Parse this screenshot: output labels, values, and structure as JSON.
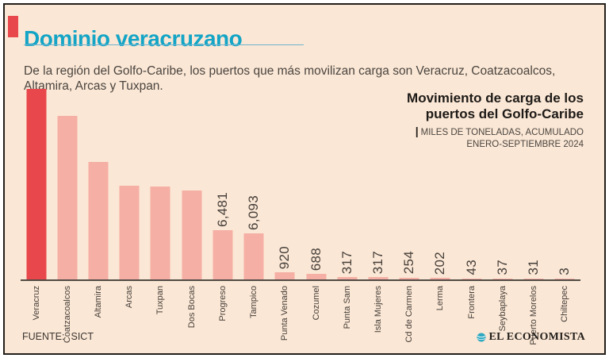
{
  "header": {
    "title": "Dominio veracruzano",
    "subtitle": "De la región del Golfo-Caribe, los puertos que más movilizan carga son Veracruz, Coatzacoalcos, Altamira, Arcas y Tuxpan."
  },
  "chart_header": {
    "title_line1": "Movimiento de carga de los",
    "title_line2": "puertos del Golfo-Caribe",
    "note_separator": "|",
    "note_line1": "MILES DE TONELADAS, ACUMULADO",
    "note_line2": "ENERO-SEPTIEMBRE 2024"
  },
  "chart_data": {
    "type": "bar",
    "title": "Movimiento de carga de los puertos del Golfo-Caribe",
    "unit_note": "MILES DE TONELADAS, ACUMULADO ENERO-SEPTIEMBRE 2024",
    "categories": [
      "Veracruz",
      "Coatzacoalcos",
      "Altamira",
      "Arcas",
      "Tuxpan",
      "Dos Bocas",
      "Progreso",
      "Tampico",
      "Punta Venado",
      "Cozumel",
      "Punta Sam",
      "Isla Mujeres",
      "Cd de Carmen",
      "Lerma",
      "Frontera",
      "Seybaplaya",
      "Puerto Morelos",
      "Chiltepec"
    ],
    "values": [
      25149,
      21546,
      15504,
      12395,
      12211,
      11690,
      6481,
      6093,
      920,
      688,
      317,
      317,
      254,
      202,
      43,
      37,
      31,
      3
    ],
    "highlight_index": 0,
    "bar_color": "#F5AFA5",
    "highlight_color": "#E8484B",
    "value_label_color": "#453F3A",
    "highlight_value_label_color": "#FFFFFF",
    "ylim": [
      0,
      25149
    ],
    "grid": false,
    "legend": false,
    "value_labels": true,
    "orientation": "vertical"
  },
  "footer": {
    "source_label": "FUENTE:",
    "source_value": "SICT",
    "brand": "EL ECONOMISTA"
  },
  "colors": {
    "background": "#FBE7D5",
    "frame_border": "#221F1C",
    "accent_red": "#E8484B",
    "title_cyan": "#14A5C6",
    "text_dark": "#453F3A",
    "axis": "#514C46"
  }
}
